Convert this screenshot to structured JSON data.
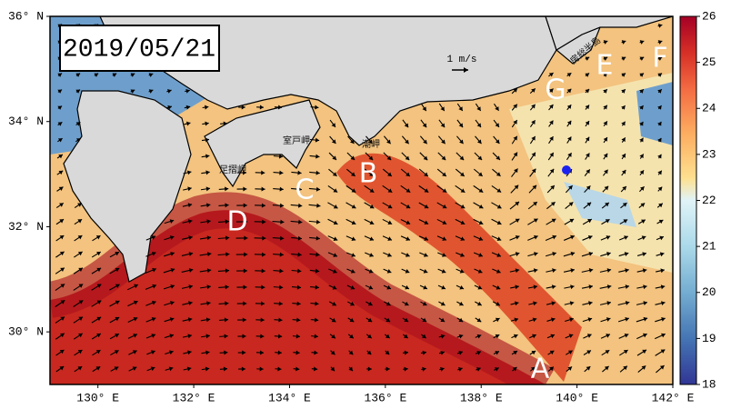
{
  "map": {
    "date": "2019/05/21",
    "lon_lim": [
      129,
      142
    ],
    "lat_lim": [
      29,
      36
    ],
    "lat_ticks": [
      {
        "value": 36,
        "label": "36° N"
      },
      {
        "value": 34,
        "label": "34° N"
      },
      {
        "value": 32,
        "label": "32° N"
      },
      {
        "value": 30,
        "label": "30° N"
      }
    ],
    "lon_ticks": [
      {
        "value": 130,
        "label": "130° E"
      },
      {
        "value": 132,
        "label": "132° E"
      },
      {
        "value": 134,
        "label": "134° E"
      },
      {
        "value": 136,
        "label": "136° E"
      },
      {
        "value": 138,
        "label": "138° E"
      },
      {
        "value": 140,
        "label": "140° E"
      },
      {
        "value": 142,
        "label": "142° E"
      }
    ],
    "scale_label": "1 m/s",
    "places": [
      "室戸岬",
      "足摺岬",
      "潮岬",
      "房総半島"
    ],
    "markers": [
      "A",
      "B",
      "C",
      "D",
      "E",
      "F",
      "G"
    ],
    "colorbar": {
      "lim": [
        18,
        26
      ],
      "ticks": [
        18,
        19,
        20,
        21,
        22,
        23,
        24,
        25,
        26
      ]
    }
  }
}
